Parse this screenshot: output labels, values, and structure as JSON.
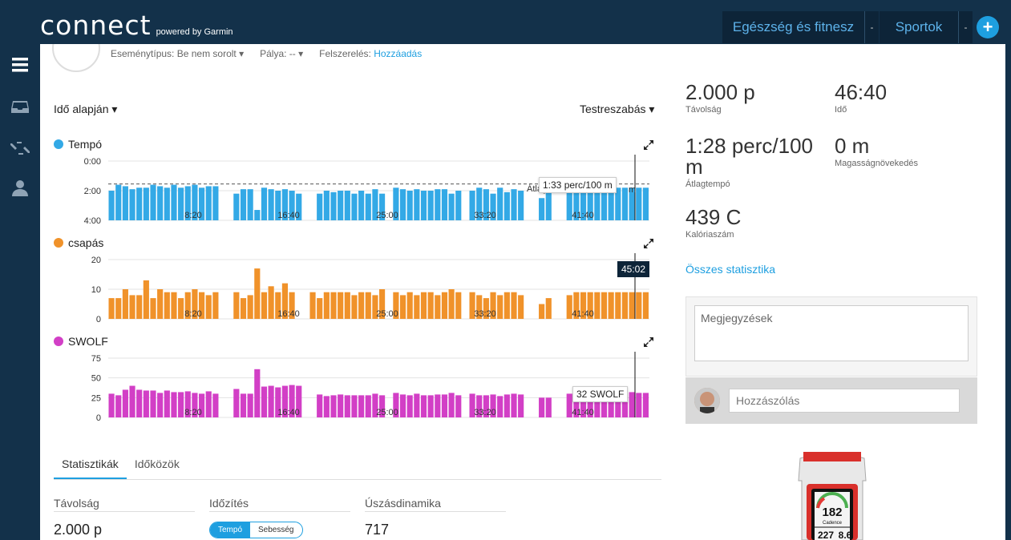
{
  "header": {
    "logo": "connect",
    "logo_sub": "powered by Garmin",
    "nav": [
      "Egészség és fitnesz",
      "Sportok"
    ],
    "nav_sep": "-",
    "plus": "+"
  },
  "activity": {
    "meta_event_type": "Eseménytípus: Be nem sorolt ▾",
    "meta_course": "Pálya: -- ▾",
    "meta_gear_label": "Felszerelés:",
    "meta_gear_link": "Hozzáadás"
  },
  "controls": {
    "mode": "Idő alapján ▾",
    "customize": "Testreszabás ▾"
  },
  "colors": {
    "pace": "#33a9e6",
    "stroke": "#f0922a",
    "swolf": "#d23fc6",
    "accent": "#1e9fe0",
    "header_bg": "#13314a"
  },
  "chart_data": [
    {
      "type": "bar",
      "title": "Tempó",
      "y_ticks": [
        "0:00",
        "2:00",
        "4:00"
      ],
      "x_ticks": [
        "8:20",
        "16:40",
        "25:00",
        "33:20",
        "41:40"
      ],
      "avg_line": true,
      "tooltip": "1:33 perc/100 m",
      "tooltip_behind": "Átlag",
      "tooltip_behind_tail": "m",
      "values_min_per_100m": [
        2.0,
        1.6,
        1.7,
        1.9,
        1.8,
        1.8,
        1.6,
        1.7,
        1.8,
        1.6,
        1.8,
        1.7,
        1.6,
        1.8,
        1.7,
        1.7,
        0,
        0,
        2.2,
        1.9,
        1.9,
        3.3,
        1.8,
        1.9,
        2.0,
        1.9,
        2.0,
        2.2,
        0,
        0,
        2.2,
        2.0,
        2.1,
        2.0,
        2.0,
        2.2,
        2.0,
        2.2,
        1.9,
        2.2,
        0,
        1.8,
        1.9,
        2.0,
        1.9,
        2.0,
        2.0,
        1.9,
        1.9,
        2.2,
        2.0,
        0,
        2.0,
        1.8,
        1.9,
        2.2,
        1.8,
        2.1,
        1.9,
        2.0,
        0,
        0,
        2.5,
        1.6,
        0,
        0,
        1.9,
        1.8,
        1.8,
        1.8,
        1.8,
        1.8,
        1.8,
        1.8,
        1.8,
        1.8,
        1.8,
        1.8
      ]
    },
    {
      "type": "bar",
      "title": "csapás",
      "y_ticks": [
        "20",
        "10",
        "0"
      ],
      "x_ticks": [
        "8:20",
        "16:40",
        "25:00",
        "33:20",
        "41:40"
      ],
      "tooltip": "45:02",
      "values": [
        7,
        7,
        10,
        8,
        8,
        13,
        7,
        10,
        9,
        9,
        7,
        9,
        10,
        9,
        8,
        9,
        0,
        0,
        9,
        7,
        8,
        17,
        9,
        11,
        9,
        12,
        9,
        0,
        0,
        9,
        7,
        9,
        9,
        9,
        9,
        8,
        9,
        9,
        8,
        10,
        0,
        9,
        8,
        9,
        8,
        9,
        9,
        8,
        9,
        10,
        9,
        0,
        9,
        8,
        7,
        9,
        8,
        9,
        9,
        8,
        0,
        0,
        5,
        7,
        0,
        0,
        8,
        9,
        9,
        9,
        9,
        9,
        9,
        9,
        9,
        9,
        9,
        9
      ]
    },
    {
      "type": "bar",
      "title": "SWOLF",
      "y_ticks": [
        "75",
        "50",
        "25",
        "0"
      ],
      "x_ticks": [
        "8:20",
        "16:40",
        "25:00",
        "33:20",
        "41:40"
      ],
      "tooltip": "32 SWOLF",
      "values": [
        30,
        28,
        35,
        40,
        35,
        34,
        34,
        31,
        34,
        32,
        32,
        33,
        31,
        30,
        33,
        30,
        0,
        0,
        36,
        30,
        30,
        61,
        39,
        40,
        38,
        40,
        41,
        40,
        0,
        0,
        29,
        27,
        28,
        29,
        28,
        28,
        28,
        28,
        30,
        28,
        0,
        31,
        29,
        28,
        30,
        28,
        28,
        29,
        29,
        31,
        28,
        0,
        30,
        28,
        28,
        29,
        27,
        29,
        30,
        29,
        0,
        0,
        25,
        25,
        0,
        0,
        30,
        30,
        30,
        31,
        30,
        30,
        31,
        31,
        31,
        32,
        31,
        31
      ]
    }
  ],
  "tabs": [
    "Statisztikák",
    "Időközök"
  ],
  "stats": {
    "distance_head": "Távolság",
    "distance_val": "2.000 p",
    "timing_head": "Időzítés",
    "toggle_on": "Tempó",
    "toggle_off": "Sebesség",
    "dyn_head": "Úszásdinamika",
    "dyn_val": "717"
  },
  "summary": {
    "distance": {
      "value": "2.000 p",
      "label": "Távolság"
    },
    "time": {
      "value": "46:40",
      "label": "Idő"
    },
    "avg_pace": {
      "value": "1:28 perc/100 m",
      "label": "Átlagtempó"
    },
    "elev": {
      "value": "0 m",
      "label": "Magasságnövekedés"
    },
    "calories": {
      "value": "439 C",
      "label": "Kalóriaszám"
    },
    "all_stats": "Összes statisztika"
  },
  "notes": {
    "placeholder": "Megjegyzések",
    "comment_placeholder": "Hozzászólás"
  },
  "device": {
    "screen_value": "182",
    "screen_label": "Cadence",
    "screen_bottom": "227",
    "screen_bottom2": "8.6"
  }
}
